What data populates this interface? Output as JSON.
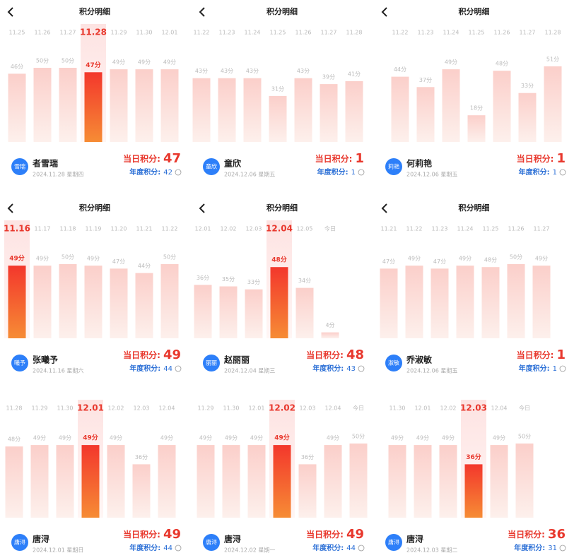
{
  "header_title": "积分明细",
  "today_label": "当日积分:",
  "year_label": "年度积分:",
  "panels": [
    {
      "header": true,
      "dates": [
        "11.25",
        "11.26",
        "11.27",
        "11.28",
        "11.29",
        "11.30",
        "12.01"
      ],
      "values": [
        46,
        50,
        50,
        47,
        49,
        49,
        49
      ],
      "value_labels": [
        "46分",
        "50分",
        "50分",
        "47分",
        "49分",
        "49分",
        "49分"
      ],
      "selected": 3,
      "avatar": "雪瑞",
      "name": "者雪瑞",
      "date": "2024.11.28 星期四",
      "today": 47,
      "year": 42
    },
    {
      "header": true,
      "dates": [
        "11.22",
        "11.23",
        "11.24",
        "11.25",
        "11.26",
        "11.27",
        "11.28"
      ],
      "values": [
        43,
        43,
        43,
        31,
        43,
        39,
        41
      ],
      "value_labels": [
        "43分",
        "43分",
        "43分",
        "31分",
        "43分",
        "39分",
        "41分"
      ],
      "selected": null,
      "avatar": "童欣",
      "name": "童欣",
      "date": "2024.12.06 星期五",
      "today": 1,
      "year": 1
    },
    {
      "header": true,
      "dates": [
        "11.22",
        "11.23",
        "11.24",
        "11.25",
        "11.26",
        "11.27",
        "11.28"
      ],
      "values": [
        44,
        37,
        49,
        18,
        48,
        33,
        51
      ],
      "value_labels": [
        "44分",
        "37分",
        "49分",
        "18分",
        "48分",
        "33分",
        "51分"
      ],
      "selected": null,
      "avatar": "莉艳",
      "name": "何莉艳",
      "date": "2024.12.06 星期五",
      "today": 1,
      "year": 1
    },
    {
      "header": true,
      "dates": [
        "11.16",
        "11.17",
        "11.18",
        "11.19",
        "11.20",
        "11.21",
        "11.22"
      ],
      "values": [
        49,
        49,
        50,
        49,
        47,
        44,
        50
      ],
      "value_labels": [
        "49分",
        "49分",
        "50分",
        "49分",
        "47分",
        "44分",
        "50分"
      ],
      "selected": 0,
      "avatar": "曦予",
      "name": "张曦予",
      "date": "2024.11.16 星期六",
      "today": 49,
      "year": 44
    },
    {
      "header": true,
      "dates": [
        "12.01",
        "12.02",
        "12.03",
        "12.04",
        "12.05",
        "今日"
      ],
      "values": [
        36,
        35,
        33,
        48,
        34,
        4
      ],
      "value_labels": [
        "36分",
        "35分",
        "33分",
        "48分",
        "34分",
        "4分"
      ],
      "selected": 3,
      "avatar": "丽丽",
      "name": "赵丽丽",
      "date": "2024.12.04 星期三",
      "today": 48,
      "year": 43
    },
    {
      "header": true,
      "dates": [
        "11.21",
        "11.22",
        "11.23",
        "11.24",
        "11.25",
        "11.26",
        "11.27"
      ],
      "values": [
        47,
        49,
        47,
        49,
        48,
        50,
        49
      ],
      "value_labels": [
        "47分",
        "49分",
        "47分",
        "49分",
        "48分",
        "50分",
        "49分"
      ],
      "selected": null,
      "avatar": "淑敏",
      "name": "乔淑敏",
      "date": "2024.12.06 星期五",
      "today": 1,
      "year": 1
    },
    {
      "header": false,
      "dates": [
        "11.28",
        "11.29",
        "11.30",
        "12.01",
        "12.02",
        "12.03",
        "12.04"
      ],
      "values": [
        48,
        49,
        49,
        49,
        49,
        36,
        49
      ],
      "value_labels": [
        "48分",
        "49分",
        "49分",
        "49分",
        "49分",
        "36分",
        "49分"
      ],
      "selected": 3,
      "avatar": "唐浔",
      "name": "唐浔",
      "date": "2024.12.01 星期日",
      "today": 49,
      "year": 44
    },
    {
      "header": false,
      "dates": [
        "11.29",
        "11.30",
        "12.01",
        "12.02",
        "12.03",
        "12.04",
        "今日"
      ],
      "values": [
        49,
        49,
        49,
        49,
        36,
        49,
        50
      ],
      "value_labels": [
        "49分",
        "49分",
        "49分",
        "49分",
        "36分",
        "49分",
        "50分"
      ],
      "selected": 3,
      "avatar": "唐浔",
      "name": "唐浔",
      "date": "2024.12.02 星期一",
      "today": 49,
      "year": 44
    },
    {
      "header": false,
      "dates": [
        "11.30",
        "12.01",
        "12.02",
        "12.03",
        "12.04",
        "今日"
      ],
      "values": [
        49,
        49,
        49,
        36,
        49,
        50
      ],
      "value_labels": [
        "49分",
        "49分",
        "49分",
        "36分",
        "49分",
        "50分"
      ],
      "selected": 3,
      "avatar": "唐浔",
      "name": "唐浔",
      "date": "2024.12.03 星期二",
      "today": 36,
      "year": 31
    }
  ]
}
